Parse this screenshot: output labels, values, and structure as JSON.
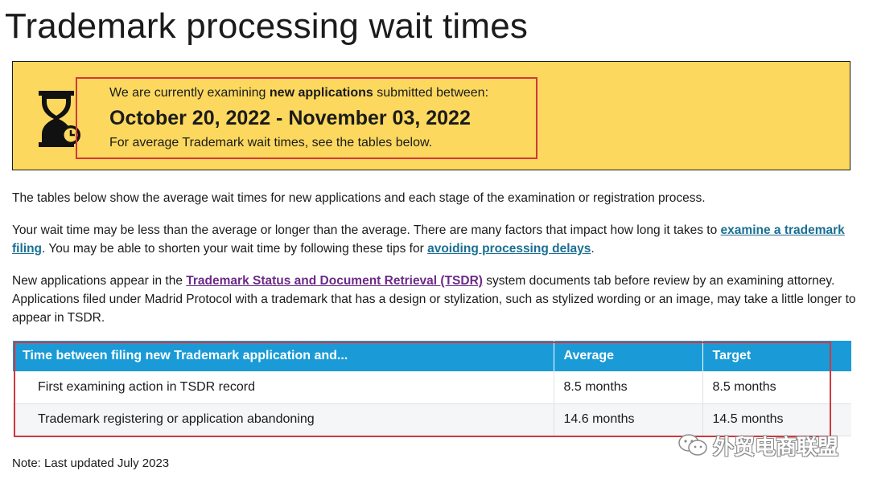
{
  "page": {
    "title": "Trademark processing wait times"
  },
  "banner": {
    "line1_prefix": "We are currently examining ",
    "line1_bold": "new applications",
    "line1_suffix": " submitted between:",
    "dates": "October 20, 2022 - November 03, 2022",
    "line3": "For average Trademark wait times, see the tables below.",
    "icon": "hourglass-clock-icon",
    "background_color": "#fcd85e",
    "highlight_color": "#d0383f"
  },
  "paragraphs": {
    "p1": "The tables below show the average wait times for new applications and each stage of the examination or registration process.",
    "p2_before": "Your wait time may be less than the average or longer than the average. There are many factors that impact how long it takes to ",
    "p2_link1": "examine a trademark filing",
    "p2_middle": ". You may be able to shorten your wait time by following these tips for ",
    "p2_link2": "avoiding processing delays",
    "p2_after": ".",
    "p3_before": "New applications appear in the ",
    "p3_link": "Trademark Status and Document Retrieval (TSDR)",
    "p3_after": " system documents tab before review by an examining attorney. Applications filed under Madrid Protocol with a trademark that has a design or stylization, such as stylized wording or an image, may take a little longer to appear in TSDR."
  },
  "table": {
    "headers": [
      "Time between filing new Trademark application and...",
      "Average",
      "Target"
    ],
    "rows": [
      [
        "First examining action in TSDR record",
        "8.5 months",
        "8.5 months"
      ],
      [
        "Trademark registering or application abandoning",
        "14.6 months",
        "14.5 months"
      ]
    ],
    "header_color": "#1a9bd7"
  },
  "note": "Note: Last updated July 2023",
  "watermark": {
    "text": "外贸电商联盟",
    "icon": "wechat-icon"
  }
}
